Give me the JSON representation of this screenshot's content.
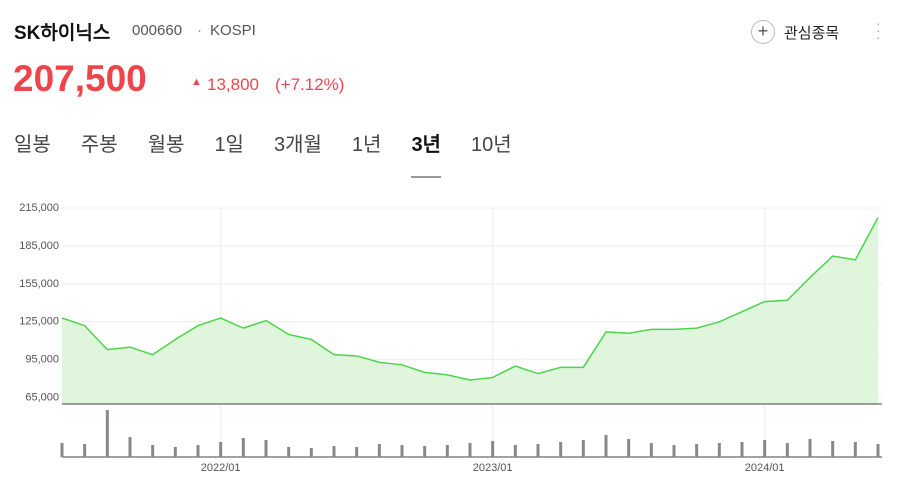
{
  "header": {
    "name": "SK하이닉스",
    "code": "000660",
    "market": "KOSPI",
    "price": "207,500",
    "change": "13,800",
    "change_pct": "(+7.12%)",
    "watch": "관심종목"
  },
  "tabs": {
    "items": [
      "일봉",
      "주봉",
      "월봉",
      "1일",
      "3개월",
      "1년",
      "3년",
      "10년"
    ],
    "selected": 6
  },
  "chart_data": {
    "type": "line",
    "x": [
      "2021/06",
      "2021/07",
      "2021/08",
      "2021/09",
      "2021/10",
      "2021/11",
      "2021/12",
      "2022/01",
      "2022/02",
      "2022/03",
      "2022/04",
      "2022/05",
      "2022/06",
      "2022/07",
      "2022/08",
      "2022/09",
      "2022/10",
      "2022/11",
      "2022/12",
      "2023/01",
      "2023/02",
      "2023/03",
      "2023/04",
      "2023/05",
      "2023/06",
      "2023/07",
      "2023/08",
      "2023/09",
      "2023/10",
      "2023/11",
      "2023/12",
      "2024/01",
      "2024/02",
      "2024/03",
      "2024/04",
      "2024/05",
      "2024/06"
    ],
    "values": [
      128000,
      122000,
      103000,
      105000,
      99000,
      111000,
      122000,
      128000,
      120000,
      126000,
      115000,
      111000,
      99000,
      98000,
      93000,
      91000,
      85000,
      83000,
      79000,
      81000,
      90000,
      84000,
      89000,
      89000,
      117000,
      116000,
      119000,
      119000,
      120000,
      125000,
      133000,
      141000,
      142000,
      160000,
      177000,
      174000,
      207500
    ],
    "color": "#4cd44c",
    "xticks": [
      "2022/01",
      "2023/01",
      "2024/01"
    ],
    "ylim": [
      60000,
      215000
    ],
    "yticks": [
      {
        "value": 215000,
        "label": "215,000"
      },
      {
        "value": 185000,
        "label": "185,000"
      },
      {
        "value": 155000,
        "label": "155,000"
      },
      {
        "value": 125000,
        "label": "125,000"
      },
      {
        "value": 95000,
        "label": "95,000"
      },
      {
        "value": 65000,
        "label": "65,000"
      }
    ],
    "grid": true,
    "volume": {
      "values": [
        14,
        13,
        47,
        20,
        12,
        10,
        12,
        15,
        19,
        17,
        10,
        9,
        11,
        10,
        13,
        12,
        11,
        12,
        14,
        16,
        12,
        13,
        15,
        17,
        22,
        18,
        14,
        12,
        13,
        14,
        15,
        17,
        14,
        18,
        16,
        15,
        13
      ],
      "color": "#888888",
      "ylim": [
        0,
        50
      ]
    }
  }
}
